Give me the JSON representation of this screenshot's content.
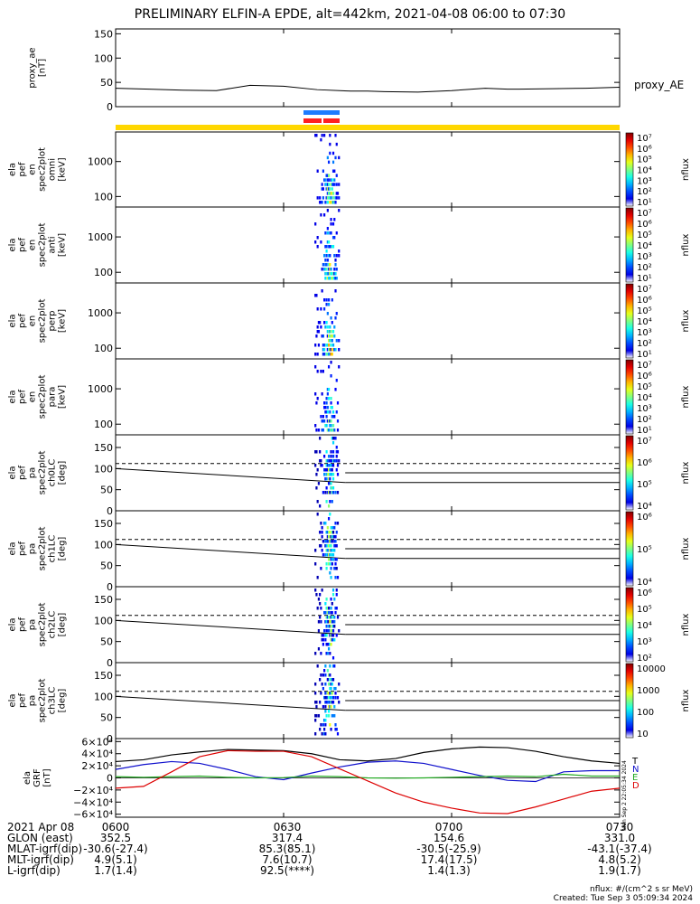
{
  "title": "PRELIMINARY ELFIN-A EPDE, alt=442km, 2021-04-08 06:00 to 07:30",
  "footer": {
    "units": "nflux: #/(cm^2 s sr MeV)",
    "created": "Created: Tue Sep  3 05:09:34 2024"
  },
  "stamp": "Mon Sep  2 22:05:34 2024",
  "colors": {
    "bar_yellow": "#ffd700",
    "bar_blue": "#1e7bff",
    "bar_red": "#ff2020",
    "grf_T": "#000000",
    "grf_N": "#1010cc",
    "grf_E": "#22aa22",
    "grf_D": "#dd0000"
  },
  "chart_data": [
    {
      "panel": "proxy_ae",
      "type": "line",
      "ylabel": [
        "proxy_ae",
        "[nT]"
      ],
      "ylim": [
        0,
        160
      ],
      "yticks": [
        "150",
        "100",
        "50",
        "0"
      ],
      "ytick_values": [
        150,
        100,
        50,
        0
      ],
      "legend": "proxy_AE",
      "x_minutes": [
        0,
        6,
        12,
        18,
        24,
        30,
        36,
        42,
        45,
        48,
        54,
        60,
        66,
        70,
        72,
        78,
        84,
        90
      ],
      "values": [
        38,
        36,
        34,
        33,
        44,
        42,
        35,
        32,
        32,
        31,
        30,
        33,
        38,
        36,
        36,
        37,
        38,
        40
      ]
    },
    {
      "panel": "ela_pef_en_spec2plot_omni",
      "type": "heatmap",
      "ylabel": [
        "ela",
        "pef",
        "en",
        "spec2plot",
        "omni",
        "[keV]"
      ],
      "yticks": [
        "1000",
        "100"
      ],
      "ytick_values": [
        1000,
        100
      ],
      "ylog": [
        50,
        7000
      ],
      "colorbar_label": "nflux",
      "colorbar_ticks": [
        "10⁷",
        "10⁶",
        "10⁵",
        "10⁴",
        "10³",
        "10²",
        "10¹"
      ]
    },
    {
      "panel": "ela_pef_en_spec2plot_anti",
      "type": "heatmap",
      "ylabel": [
        "ela",
        "pef",
        "en",
        "spec2plot",
        "anti",
        "[keV]"
      ],
      "yticks": [
        "1000",
        "100"
      ],
      "ytick_values": [
        1000,
        100
      ],
      "ylog": [
        50,
        7000
      ],
      "colorbar_label": "nflux",
      "colorbar_ticks": [
        "10⁷",
        "10⁶",
        "10⁵",
        "10⁴",
        "10³",
        "10²",
        "10¹"
      ]
    },
    {
      "panel": "ela_pef_en_spec2plot_perp",
      "type": "heatmap",
      "ylabel": [
        "ela",
        "pef",
        "en",
        "spec2plot",
        "perp",
        "[keV]"
      ],
      "yticks": [
        "1000",
        "100"
      ],
      "ytick_values": [
        1000,
        100
      ],
      "ylog": [
        50,
        7000
      ],
      "colorbar_label": "nflux",
      "colorbar_ticks": [
        "10⁷",
        "10⁶",
        "10⁵",
        "10⁴",
        "10³",
        "10²",
        "10¹"
      ]
    },
    {
      "panel": "ela_pef_en_spec2plot_para",
      "type": "heatmap",
      "ylabel": [
        "ela",
        "pef",
        "en",
        "spec2plot",
        "para",
        "[keV]"
      ],
      "yticks": [
        "1000",
        "100"
      ],
      "ytick_values": [
        1000,
        100
      ],
      "ylog": [
        50,
        7000
      ],
      "colorbar_label": "nflux",
      "colorbar_ticks": [
        "10⁷",
        "10⁶",
        "10⁵",
        "10⁴",
        "10³",
        "10²",
        "10¹"
      ]
    },
    {
      "panel": "ela_pef_pa_spec2plot_ch0LC",
      "type": "heatmap",
      "ylabel": [
        "ela",
        "pef",
        "pa",
        "spec2plot",
        "ch0LC",
        "[deg]"
      ],
      "yticks": [
        "150",
        "100",
        "50",
        "0"
      ],
      "ytick_values": [
        150,
        100,
        50,
        0
      ],
      "ylim": [
        0,
        180
      ],
      "colorbar_label": "nflux",
      "colorbar_ticks": [
        "10⁷",
        "10⁶",
        "10⁵",
        "10⁴"
      ]
    },
    {
      "panel": "ela_pef_pa_spec2plot_ch1LC",
      "type": "heatmap",
      "ylabel": [
        "ela",
        "pef",
        "pa",
        "spec2plot",
        "ch1LC",
        "[deg]"
      ],
      "yticks": [
        "150",
        "100",
        "50",
        "0"
      ],
      "ytick_values": [
        150,
        100,
        50,
        0
      ],
      "ylim": [
        0,
        180
      ],
      "colorbar_label": "nflux",
      "colorbar_ticks": [
        "10⁶",
        "10⁵",
        "10⁴"
      ]
    },
    {
      "panel": "ela_pef_pa_spec2plot_ch2LC",
      "type": "heatmap",
      "ylabel": [
        "ela",
        "pef",
        "pa",
        "spec2plot",
        "ch2LC",
        "[deg]"
      ],
      "yticks": [
        "150",
        "100",
        "50",
        "0"
      ],
      "ytick_values": [
        150,
        100,
        50,
        0
      ],
      "ylim": [
        0,
        180
      ],
      "colorbar_label": "nflux",
      "colorbar_ticks": [
        "10⁶",
        "10⁵",
        "10⁴",
        "10³",
        "10²"
      ]
    },
    {
      "panel": "ela_pef_pa_spec2plot_ch3LC",
      "type": "heatmap",
      "ylabel": [
        "ela",
        "pef",
        "pa",
        "spec2plot",
        "ch3LC",
        "[deg]"
      ],
      "yticks": [
        "150",
        "100",
        "50",
        "0"
      ],
      "ytick_values": [
        150,
        100,
        50,
        0
      ],
      "ylim": [
        0,
        180
      ],
      "colorbar_label": "nflux",
      "colorbar_ticks": [
        "10000",
        "1000",
        "100",
        "10"
      ]
    },
    {
      "panel": "ela_GRF",
      "type": "line",
      "ylabel": [
        "ela",
        "GRF",
        "[nT]"
      ],
      "ylim": [
        -65000,
        65000
      ],
      "yticks": [
        "6×10⁴",
        "4×10⁴",
        "2×10⁴",
        "0",
        "−2×10⁴",
        "−4×10⁴",
        "−6×10⁴"
      ],
      "ytick_values": [
        60000,
        40000,
        20000,
        0,
        -20000,
        -40000,
        -60000
      ],
      "legend": [
        "T",
        "N",
        "E",
        "D"
      ],
      "x_minutes": [
        0,
        5,
        10,
        15,
        20,
        25,
        30,
        35,
        40,
        45,
        50,
        55,
        60,
        65,
        70,
        75,
        80,
        85,
        90
      ],
      "series": [
        {
          "name": "T",
          "values": [
            27000,
            30000,
            38000,
            43000,
            47000,
            46000,
            45000,
            40000,
            30000,
            28000,
            32000,
            42000,
            48000,
            51000,
            50000,
            44000,
            35000,
            28000,
            24000
          ]
        },
        {
          "name": "N",
          "values": [
            14000,
            22000,
            27000,
            24000,
            14000,
            2000,
            -3000,
            8000,
            18000,
            26000,
            28000,
            24000,
            14000,
            4000,
            -4000,
            -6000,
            10000,
            12000,
            12000
          ]
        },
        {
          "name": "E",
          "values": [
            2000,
            1000,
            2000,
            3000,
            1000,
            0,
            500,
            3000,
            2000,
            0,
            -500,
            0,
            1000,
            2000,
            3000,
            2000,
            6000,
            3000,
            3000
          ]
        },
        {
          "name": "D",
          "values": [
            -17000,
            -14000,
            10000,
            35000,
            45000,
            44000,
            44000,
            35000,
            15000,
            -5000,
            -25000,
            -40000,
            -50000,
            -58000,
            -59000,
            -48000,
            -35000,
            -22000,
            -17000
          ]
        }
      ]
    }
  ],
  "xaxis": {
    "rows": [
      {
        "label": "2021 Apr 08",
        "values": [
          "0600",
          "0630",
          "0700",
          "0730"
        ]
      },
      {
        "label": "GLON (east)",
        "values": [
          "352.5",
          "317.4",
          "154.6",
          "331.0"
        ]
      },
      {
        "label": "MLAT-igrf(dip)",
        "values": [
          "-30.6(-27.4)",
          "85.3(85.1)",
          "-30.5(-25.9)",
          "-43.1(-37.4)"
        ]
      },
      {
        "label": "MLT-igrf(dip)",
        "values": [
          "4.9(5.1)",
          "7.6(10.7)",
          "17.4(17.5)",
          "4.8(5.2)"
        ]
      },
      {
        "label": "L-igrf(dip)",
        "values": [
          "1.7(1.4)",
          "92.5(****)",
          "1.4(1.3)",
          "1.9(1.7)"
        ]
      }
    ]
  }
}
